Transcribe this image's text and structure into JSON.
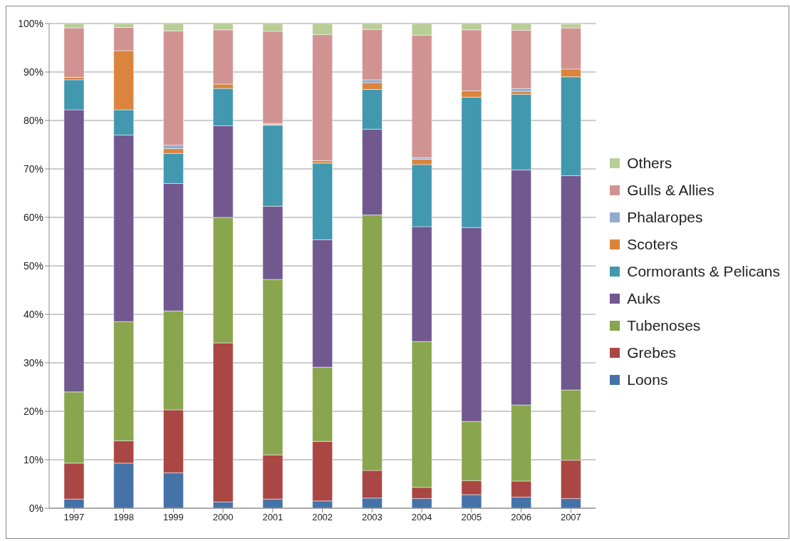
{
  "chart_data": {
    "type": "bar",
    "stacked": true,
    "categories": [
      "1997",
      "1998",
      "1999",
      "2000",
      "2001",
      "2002",
      "2003",
      "2004",
      "2005",
      "2006",
      "2007"
    ],
    "series": [
      {
        "name": "Loons",
        "color": "#4572a7",
        "values": [
          1.9,
          9.3,
          7.3,
          1.3,
          1.9,
          1.5,
          2.1,
          2,
          2.8,
          2.3,
          2
        ]
      },
      {
        "name": "Grebes",
        "color": "#aa4643",
        "values": [
          7.4,
          4.6,
          13,
          32.8,
          9.1,
          12.3,
          5.7,
          2.3,
          2.9,
          3.3,
          7.9
        ]
      },
      {
        "name": "Tubenoses",
        "color": "#89a54e",
        "values": [
          14.7,
          24.6,
          20.4,
          25.9,
          36.2,
          15.3,
          52.7,
          30.1,
          12.2,
          15.7,
          14.5
        ]
      },
      {
        "name": "Auks",
        "color": "#71588f",
        "values": [
          58.2,
          38.5,
          26.3,
          18.9,
          15.1,
          26.3,
          17.7,
          23.7,
          40,
          48.5,
          44.2
        ]
      },
      {
        "name": "Cormorants & Pelicans",
        "color": "#4198af",
        "values": [
          6.2,
          5.2,
          6.2,
          7.7,
          16.7,
          15.8,
          8.2,
          12.8,
          26.9,
          15.6,
          20.4
        ]
      },
      {
        "name": "Scoters",
        "color": "#db843d",
        "values": [
          0.5,
          12.2,
          1,
          0.9,
          0.2,
          0.5,
          1.4,
          1.1,
          1.3,
          0.6,
          1.6
        ]
      },
      {
        "name": "Phalaropes",
        "color": "#93a9cf",
        "values": [
          0,
          0,
          0.7,
          0,
          0.2,
          0,
          0.6,
          0.3,
          0,
          0.6,
          null
        ]
      },
      {
        "name": "Gulls & Allies",
        "color": "#d19392",
        "values": [
          10.2,
          4.8,
          23.6,
          11.2,
          19,
          26,
          10.4,
          25.3,
          12.6,
          12,
          8.5
        ]
      },
      {
        "name": "Others",
        "color": "#b9cd96",
        "values": [
          0.9,
          0.8,
          1.5,
          1.3,
          1.6,
          2.3,
          1.2,
          2.4,
          1.3,
          1.4,
          0.8
        ]
      }
    ],
    "ylim": [
      0,
      100
    ],
    "yticks": [
      {
        "value": 0,
        "label": "0%"
      },
      {
        "value": 10,
        "label": "10%"
      },
      {
        "value": 20,
        "label": "20%"
      },
      {
        "value": 30,
        "label": "30%"
      },
      {
        "value": 40,
        "label": "40%"
      },
      {
        "value": 50,
        "label": "50%"
      },
      {
        "value": 60,
        "label": "60%"
      },
      {
        "value": 70,
        "label": "70%"
      },
      {
        "value": 80,
        "label": "80%"
      },
      {
        "value": 90,
        "label": "90%"
      },
      {
        "value": 100,
        "label": "100%"
      }
    ],
    "grid": "y",
    "legend": "right"
  }
}
